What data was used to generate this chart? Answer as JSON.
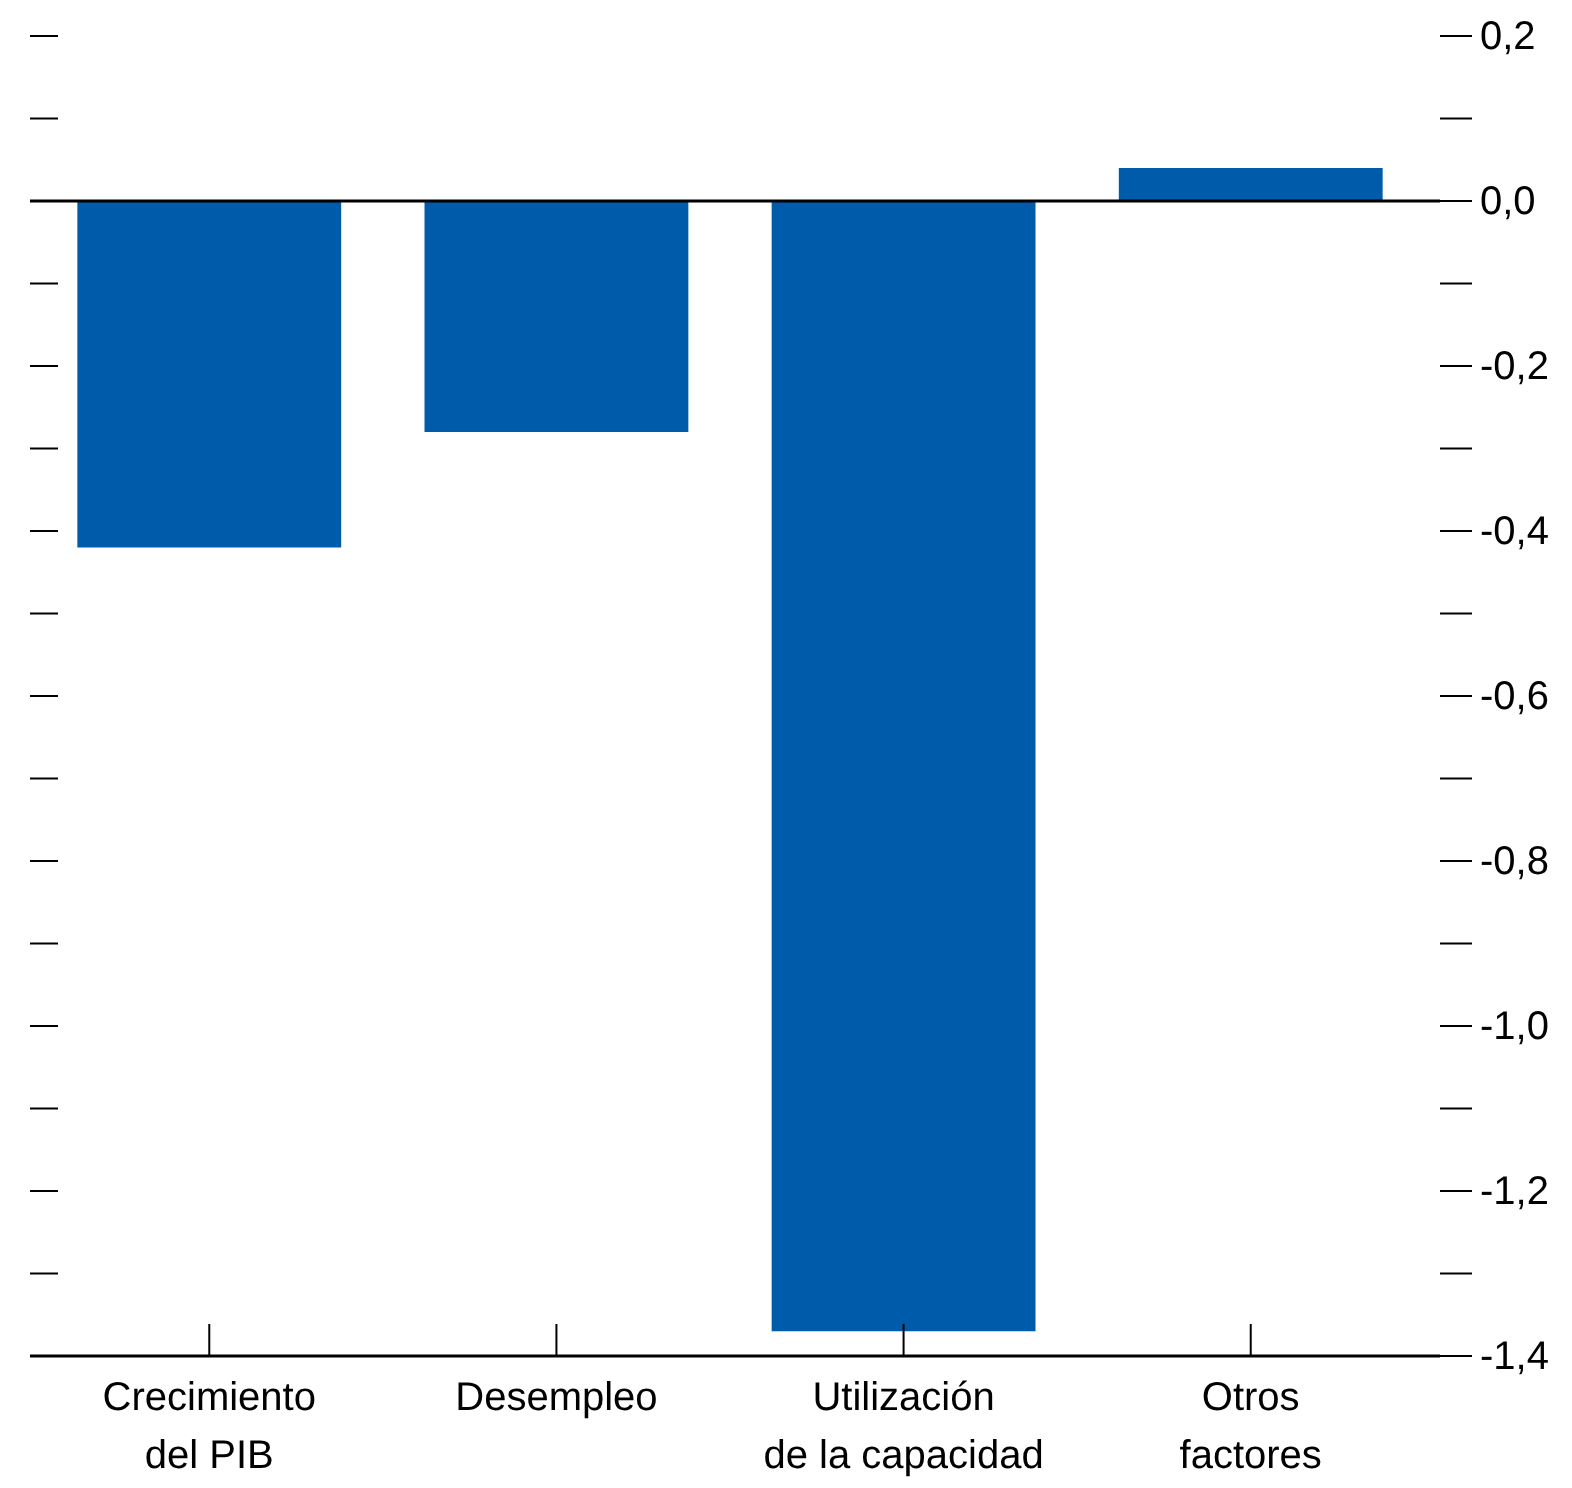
{
  "chart_data": {
    "type": "bar",
    "categories": [
      "Crecimiento\ndel PIB",
      "Desempleo",
      "Utilización\nde la capacidad",
      "Otros\nfactores"
    ],
    "values": [
      -0.42,
      -0.28,
      -1.37,
      0.04
    ],
    "color": "#005baa",
    "ylim": [
      -1.4,
      0.2
    ],
    "yticks": [
      {
        "value": 0.2,
        "label": "0,2"
      },
      {
        "value": 0.1,
        "label": null
      },
      {
        "value": 0,
        "label": "0,0"
      },
      {
        "value": -0.1,
        "label": null
      },
      {
        "value": -0.2,
        "label": "-0,2"
      },
      {
        "value": -0.3,
        "label": null
      },
      {
        "value": -0.4,
        "label": "-0,4"
      },
      {
        "value": -0.5,
        "label": null
      },
      {
        "value": -0.6,
        "label": "-0,6"
      },
      {
        "value": -0.7,
        "label": null
      },
      {
        "value": -0.8,
        "label": "-0,8"
      },
      {
        "value": -0.9,
        "label": null
      },
      {
        "value": -1.0,
        "label": "-1,0"
      },
      {
        "value": -1.1,
        "label": null
      },
      {
        "value": -1.2,
        "label": "-1,2"
      },
      {
        "value": -1.3,
        "label": null
      },
      {
        "value": -1.4,
        "label": "-1,4"
      }
    ],
    "ref_lines": [
      {
        "axis": "y",
        "value": 0,
        "color": "#000000"
      }
    ]
  }
}
